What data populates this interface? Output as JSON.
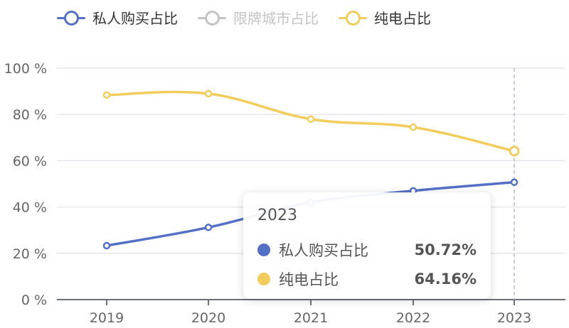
{
  "legend": {
    "items": [
      {
        "label": "私人购买占比",
        "color": "#5470c6",
        "active": true
      },
      {
        "label": "限牌城市占比",
        "color": "#c4c4c4",
        "active": false
      },
      {
        "label": "纯电占比",
        "color": "#f2cd5c",
        "active": true
      }
    ]
  },
  "tooltip": {
    "title": "2023",
    "rows": [
      {
        "dot_color": "#5470c6",
        "label": "私人购买占比",
        "value": "50.72%"
      },
      {
        "dot_color": "#f2cd5c",
        "label": "纯电占比",
        "value": "64.16%"
      }
    ]
  },
  "chart_data": {
    "type": "line",
    "categories": [
      "2019",
      "2020",
      "2021",
      "2022",
      "2023"
    ],
    "ylim": [
      0,
      100
    ],
    "yticks": [
      0,
      20,
      40,
      60,
      80,
      100
    ],
    "ytick_labels": [
      "0 %",
      "20 %",
      "40 %",
      "60 %",
      "80 %",
      "100 %"
    ],
    "grid": true,
    "legend_position": "top-left",
    "highlighted_category": "2023",
    "series": [
      {
        "name": "私人购买占比",
        "color": "#5470c6",
        "values": [
          23.3,
          31.2,
          42.0,
          47.0,
          50.72
        ]
      },
      {
        "name": "纯电占比",
        "color": "#f2cd5c",
        "values": [
          88.4,
          89.0,
          78.0,
          74.5,
          64.16
        ]
      }
    ]
  }
}
